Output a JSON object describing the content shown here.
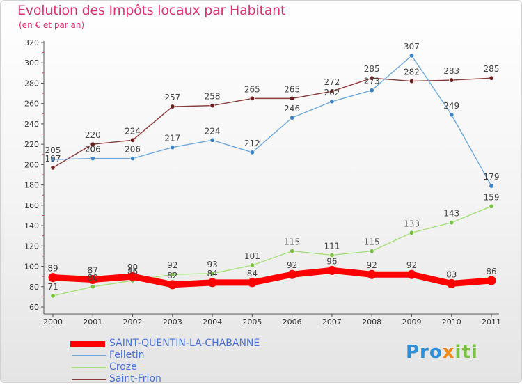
{
  "title": "Evolution des Impôts locaux par Habitant",
  "subtitle": "(en € et par an)",
  "logo": {
    "text": "Proxiti",
    "parts": [
      "Pro",
      "x",
      "iti"
    ]
  },
  "chart_data": {
    "type": "line",
    "title": "Evolution des Impôts locaux par Habitant",
    "subtitle": "(en € et par an)",
    "xlabel": "",
    "ylabel": "",
    "ylim": [
      60,
      320
    ],
    "ytick_step": 20,
    "grid": false,
    "legend_position": "bottom-left",
    "categories": [
      "2000",
      "2001",
      "2002",
      "2003",
      "2004",
      "2005",
      "2006",
      "2007",
      "2008",
      "2009",
      "2010",
      "2011"
    ],
    "y_ticks": [
      "60",
      "80",
      "100",
      "120",
      "140",
      "160",
      "180",
      "200",
      "220",
      "240",
      "260",
      "280",
      "300",
      "320"
    ],
    "series": [
      {
        "name": "SAINT-QUENTIN-LA-CHABANNE",
        "color": "#ff0000",
        "thick": true,
        "values": [
          89,
          87,
          90,
          82,
          84,
          84,
          92,
          96,
          92,
          92,
          83,
          86
        ],
        "labels": [
          "89",
          "87",
          "90",
          "82",
          "84",
          "84",
          "92",
          "96",
          "92",
          "92",
          "83",
          "86"
        ]
      },
      {
        "name": "Felletin",
        "color": "#6fa8dc",
        "marker": "#3d85c6",
        "thick": false,
        "values": [
          205,
          206,
          206,
          217,
          224,
          212,
          246,
          262,
          273,
          307,
          249,
          179
        ],
        "labels": [
          "205",
          "206",
          "206",
          "217",
          "224",
          "212",
          "246",
          "262",
          "273",
          "307",
          "249",
          "179"
        ]
      },
      {
        "name": "Croze",
        "color": "#a8e07a",
        "marker": "#79c043",
        "thick": false,
        "values": [
          71,
          80,
          86,
          92,
          93,
          101,
          115,
          111,
          115,
          133,
          143,
          159
        ],
        "labels": [
          "71",
          "80",
          "86",
          "92",
          "93",
          "101",
          "115",
          "111",
          "115",
          "133",
          "143",
          "159"
        ]
      },
      {
        "name": "Saint-Frion",
        "color": "#8b3a3a",
        "marker": "#6b1f1f",
        "thick": false,
        "values": [
          197,
          220,
          224,
          257,
          258,
          265,
          265,
          272,
          285,
          282,
          283,
          285
        ],
        "labels": [
          "197",
          "220",
          "224",
          "257",
          "258",
          "265",
          "265",
          "272",
          "285",
          "282",
          "283",
          "285"
        ]
      }
    ]
  }
}
